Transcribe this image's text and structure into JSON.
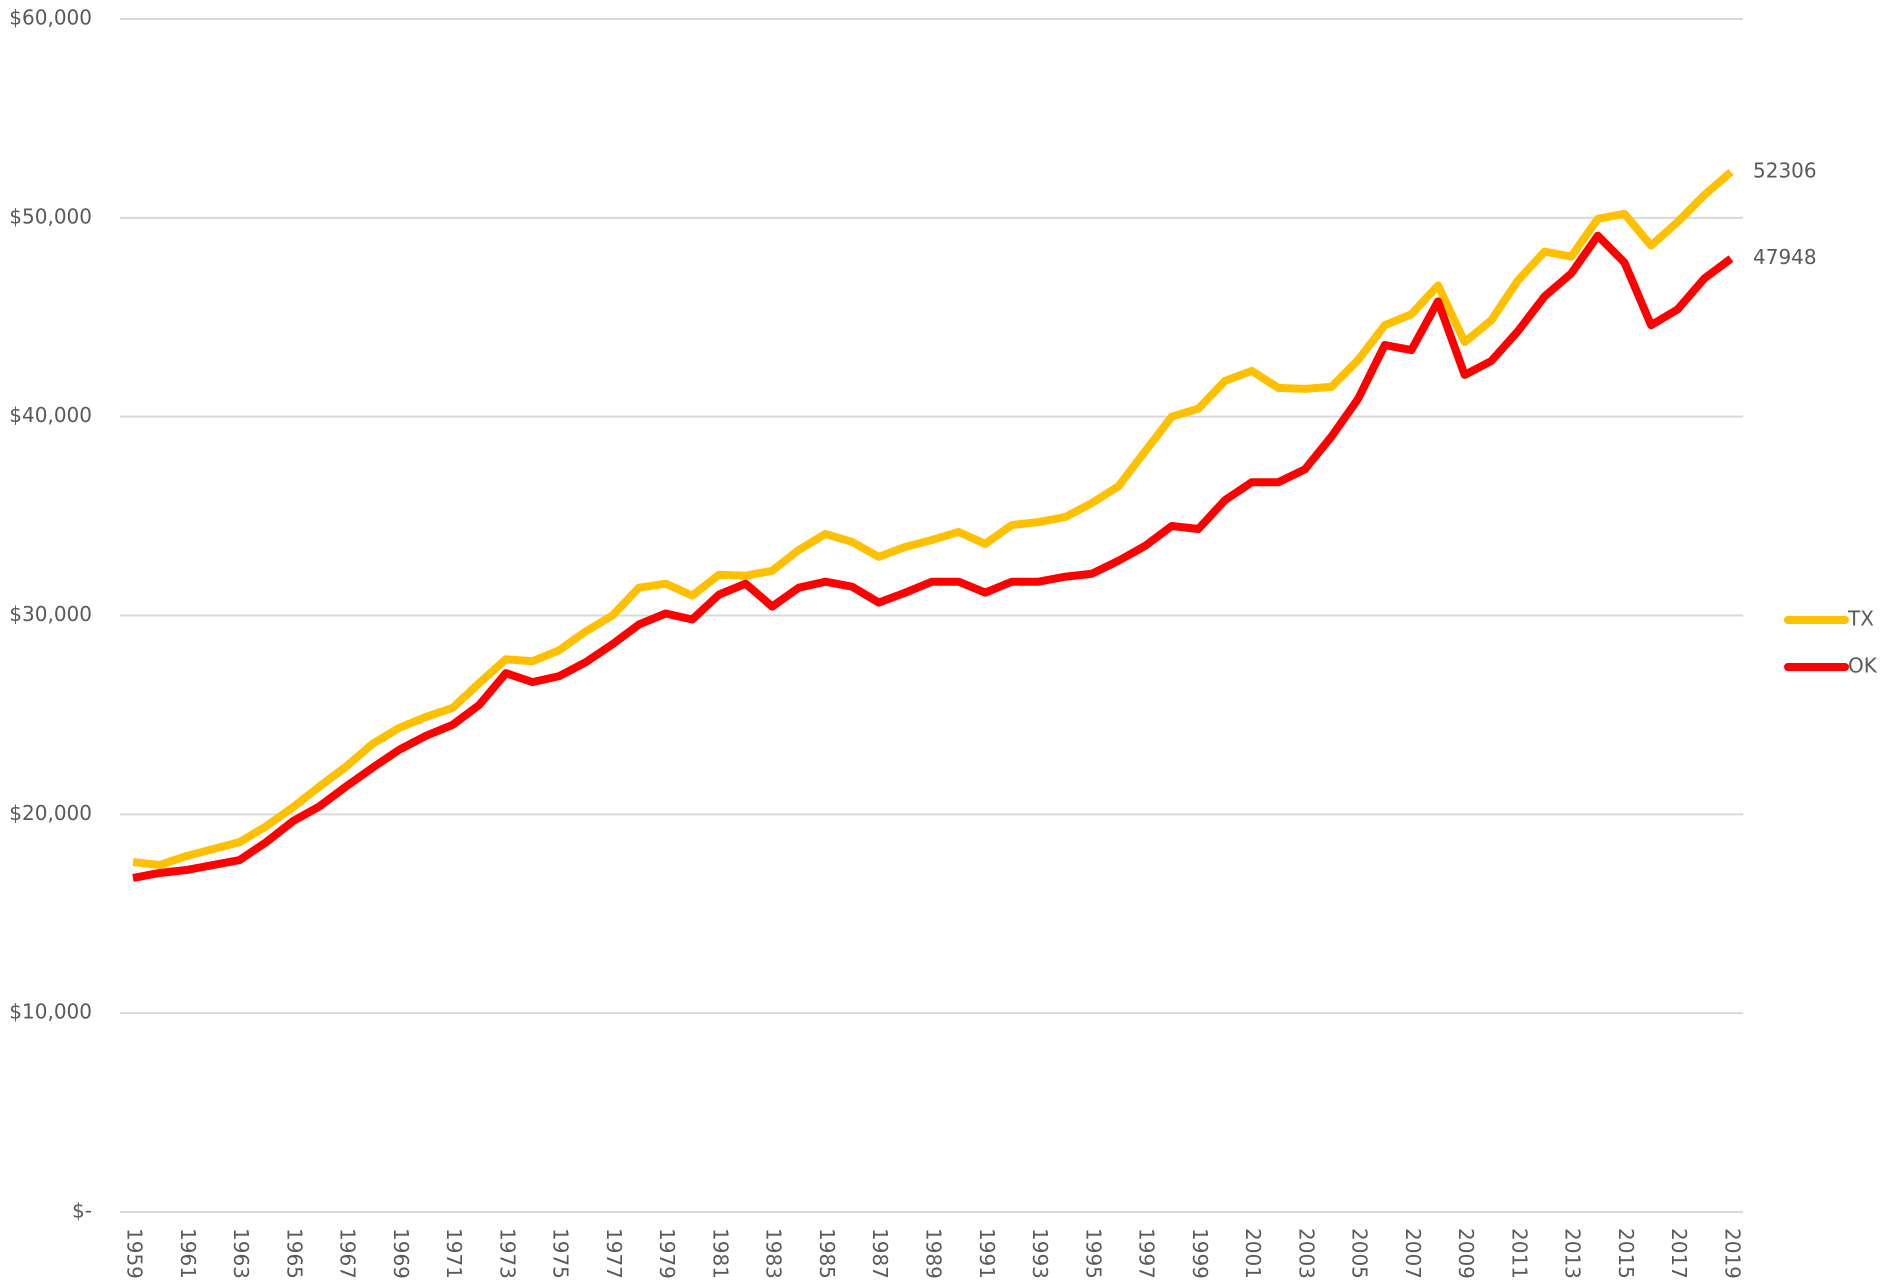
{
  "chart_data": {
    "type": "line",
    "x": [
      1959,
      1960,
      1961,
      1962,
      1963,
      1964,
      1965,
      1966,
      1967,
      1968,
      1969,
      1970,
      1971,
      1972,
      1973,
      1974,
      1975,
      1976,
      1977,
      1978,
      1979,
      1980,
      1981,
      1982,
      1983,
      1984,
      1985,
      1986,
      1987,
      1988,
      1989,
      1990,
      1991,
      1992,
      1993,
      1994,
      1995,
      1996,
      1997,
      1998,
      1999,
      2000,
      2001,
      2002,
      2003,
      2004,
      2005,
      2006,
      2007,
      2008,
      2009,
      2010,
      2011,
      2012,
      2013,
      2014,
      2015,
      2016,
      2017,
      2018,
      2019
    ],
    "series": [
      {
        "name": "TX",
        "color": "#ffc000",
        "values": [
          17600,
          17450,
          17900,
          18250,
          18600,
          19400,
          20350,
          21400,
          22400,
          23550,
          24350,
          24900,
          25350,
          26600,
          27800,
          27700,
          28250,
          29200,
          30000,
          31400,
          31600,
          31000,
          32050,
          32000,
          32250,
          33300,
          34100,
          33700,
          32950,
          33450,
          33800,
          34200,
          33600,
          34550,
          34700,
          34950,
          35650,
          36500,
          38250,
          40000,
          40400,
          41800,
          42300,
          41450,
          41400,
          41500,
          42850,
          44600,
          45150,
          46600,
          43750,
          44850,
          46850,
          48300,
          48050,
          49950,
          50200,
          48600,
          49800,
          51150,
          52306
        ]
      },
      {
        "name": "OK",
        "color": "#ff0000",
        "values": [
          16800,
          17050,
          17200,
          17450,
          17700,
          18600,
          19650,
          20400,
          21400,
          22350,
          23250,
          23950,
          24500,
          25500,
          27100,
          26650,
          26950,
          27650,
          28550,
          29550,
          30100,
          29800,
          31050,
          31600,
          30450,
          31400,
          31700,
          31450,
          30650,
          31150,
          31700,
          31700,
          31150,
          31700,
          31700,
          31950,
          32100,
          32750,
          33500,
          34500,
          34350,
          35800,
          36700,
          36700,
          37350,
          39000,
          40900,
          43600,
          43350,
          45800,
          42100,
          42800,
          44300,
          46050,
          47200,
          49100,
          47750,
          44600,
          45400,
          46950,
          47948
        ]
      }
    ],
    "xlim": [
      1959,
      2019
    ],
    "xticks": [
      1959,
      1961,
      1963,
      1965,
      1967,
      1969,
      1971,
      1973,
      1975,
      1977,
      1979,
      1981,
      1983,
      1985,
      1987,
      1989,
      1991,
      1993,
      1995,
      1997,
      1999,
      2001,
      2003,
      2005,
      2007,
      2009,
      2011,
      2013,
      2015,
      2017,
      2019
    ],
    "ylim": [
      0,
      60000
    ],
    "yticks": [
      {
        "value": 0,
        "label": "$-"
      },
      {
        "value": 10000,
        "label": "$10,000"
      },
      {
        "value": 20000,
        "label": "$20,000"
      },
      {
        "value": 30000,
        "label": "$30,000"
      },
      {
        "value": 40000,
        "label": "$40,000"
      },
      {
        "value": 50000,
        "label": "$50,000"
      },
      {
        "value": 60000,
        "label": "$60,000"
      }
    ],
    "grid": true,
    "legend": "right"
  }
}
